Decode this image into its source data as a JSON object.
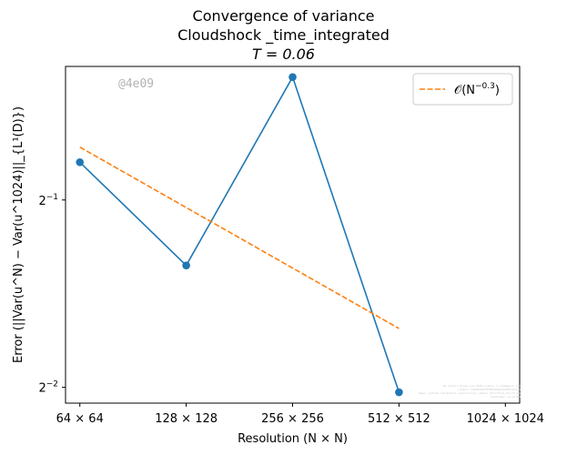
{
  "chart_data": {
    "type": "line",
    "title_lines": [
      "Convergence of variance",
      "Cloudshock _time_integrated",
      "T = 0.06"
    ],
    "xlabel": "Resolution (N × N)",
    "ylabel": "Error (||Var(u^N) − Var(u^1024)||_{L¹(D)})",
    "x_scale": "log2",
    "y_scale": "log2",
    "x_ticks": [
      {
        "value": 64,
        "label": "64 × 64"
      },
      {
        "value": 128,
        "label": "128 × 128"
      },
      {
        "value": 256,
        "label": "256 × 256"
      },
      {
        "value": 512,
        "label": "512 × 512"
      },
      {
        "value": 1024,
        "label": "1024 × 1024"
      }
    ],
    "y_ticks": [
      {
        "value": 0.5,
        "base": "2",
        "exp": "−1"
      },
      {
        "value": 0.25,
        "base": "2",
        "exp": "−2"
      }
    ],
    "xlim": [
      58.3,
      1124
    ],
    "ylim": [
      0.2358,
      0.8196
    ],
    "series": [
      {
        "color": "#1f77b4",
        "style": "solid",
        "marker": "circle",
        "x": [
          64,
          128,
          256,
          512
        ],
        "y": [
          0.575,
          0.3925,
          0.788,
          0.2455
        ]
      },
      {
        "name": "O(N^{-0.3})",
        "legend_label": "𝒪(N",
        "legend_exp": "−0.3",
        "legend_close": ")",
        "color": "#ff7f0e",
        "style": "dashed",
        "marker": "none",
        "x": [
          64,
          512
        ],
        "y": [
          0.608,
          0.3108
        ]
      }
    ],
    "legend_position": "top-right",
    "grid": false
  },
  "watermark": "@4e09",
  "footnote_lines": [
    "By Kjetil Olsen Lye 2020 kjetil.o.lye@gmail.com",
    "Commit: 4e09b3d6f0785d4bab4d295b123111",
    "Repo: github.com/kjetil-lye/alsvinn_ismpts_structure_functions",
    "Hostname: ls-mlt01"
  ]
}
